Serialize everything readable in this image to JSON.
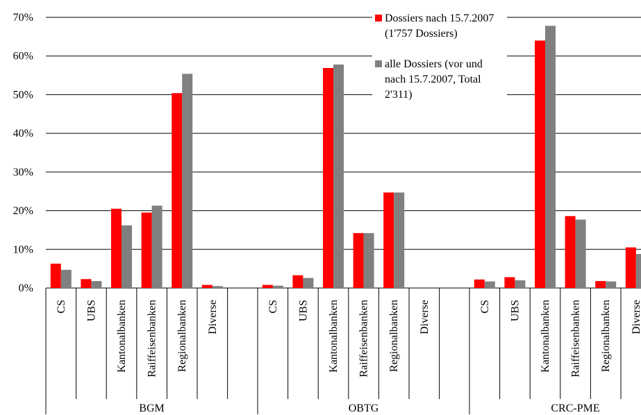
{
  "chart_data": {
    "type": "bar",
    "title": "",
    "xlabel": "",
    "ylabel": "",
    "ylim": [
      0,
      70
    ],
    "yticks": [
      "0%",
      "10%",
      "20%",
      "30%",
      "40%",
      "50%",
      "60%",
      "70%"
    ],
    "grid": true,
    "legend_placement": "top-center",
    "groups": [
      {
        "name": "BGM",
        "categories": [
          "CS",
          "UBS",
          "Kantonalbanken",
          "Raiffeisenbanken",
          "Regionalbanken",
          "Diverse"
        ]
      },
      {
        "name": "OBTG",
        "categories": [
          "CS",
          "UBS",
          "Kantonalbanken",
          "Raiffeisenbanken",
          "Regionalbanken",
          "Diverse"
        ]
      },
      {
        "name": "CRC-PME",
        "categories": [
          "CS",
          "UBS",
          "Kantonalbanken",
          "Raiffeisenbanken",
          "Regionalbanken",
          "Diverse"
        ]
      }
    ],
    "series": [
      {
        "name": "Dossiers nach 15.7.2007 (1'757 Dossiers)",
        "color": "#ff0000",
        "values": [
          [
            6.3,
            2.3,
            20.5,
            19.5,
            50.4,
            0.8
          ],
          [
            0.8,
            3.3,
            56.9,
            14.2,
            24.7,
            0.0
          ],
          [
            2.2,
            2.8,
            64.0,
            18.6,
            1.8,
            10.5
          ]
        ]
      },
      {
        "name": "alle Dossiers (vor und nach 15.7.2007, Total 2'311)",
        "color": "#808080",
        "values": [
          [
            4.7,
            1.8,
            16.2,
            21.3,
            55.4,
            0.5
          ],
          [
            0.6,
            2.6,
            57.8,
            14.2,
            24.7,
            0.0
          ],
          [
            1.7,
            2.0,
            67.8,
            17.7,
            1.7,
            8.8
          ]
        ]
      }
    ]
  }
}
